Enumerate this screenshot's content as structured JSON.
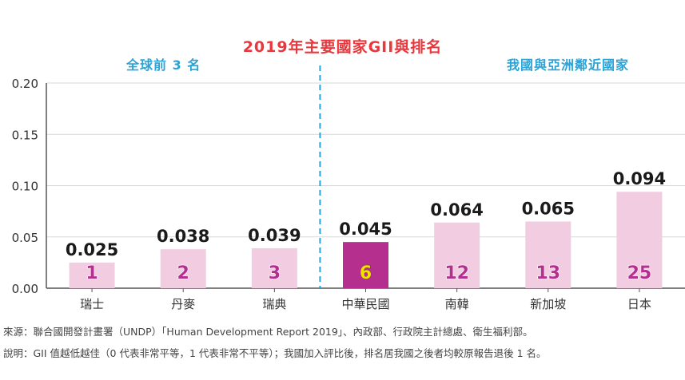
{
  "chart_data": {
    "type": "bar",
    "title": "2019年主要國家GII與排名",
    "categories": [
      "瑞士",
      "丹麥",
      "瑞典",
      "中華民國",
      "南韓",
      "新加坡",
      "日本"
    ],
    "values": [
      0.025,
      0.038,
      0.039,
      0.045,
      0.064,
      0.065,
      0.094
    ],
    "value_labels": [
      "0.025",
      "0.038",
      "0.039",
      "0.045",
      "0.064",
      "0.065",
      "0.094"
    ],
    "ranks": [
      "1",
      "2",
      "3",
      "6",
      "12",
      "13",
      "25"
    ],
    "highlight_index": 3,
    "yticks": [
      "0.00",
      "0.05",
      "0.10",
      "0.15",
      "0.20"
    ],
    "ylim": [
      0,
      0.2
    ],
    "grid": true,
    "group_labels": {
      "left": "全球前 3 名",
      "right": "我國與亞洲鄰近國家"
    }
  },
  "colors": {
    "bar": "#f2cde2",
    "highlight_bar": "#b52f8f",
    "rank_text": "#b52f8f",
    "highlight_rank_text": "#f5e000",
    "title": "#e8383d",
    "group_label": "#2aa3d6",
    "divider": "#2aa3d6",
    "grid": "#d9d9d9"
  },
  "notes": {
    "source": "來源：聯合國開發計畫署（UNDP）「Human Development Report 2019」、內政部、行政院主計總處、衛生福利部。",
    "explanation": "說明：GII 值越低越佳（0 代表非常平等，1 代表非常不平等）；我國加入評比後，排名居我國之後者均較原報告退後 1 名。"
  }
}
